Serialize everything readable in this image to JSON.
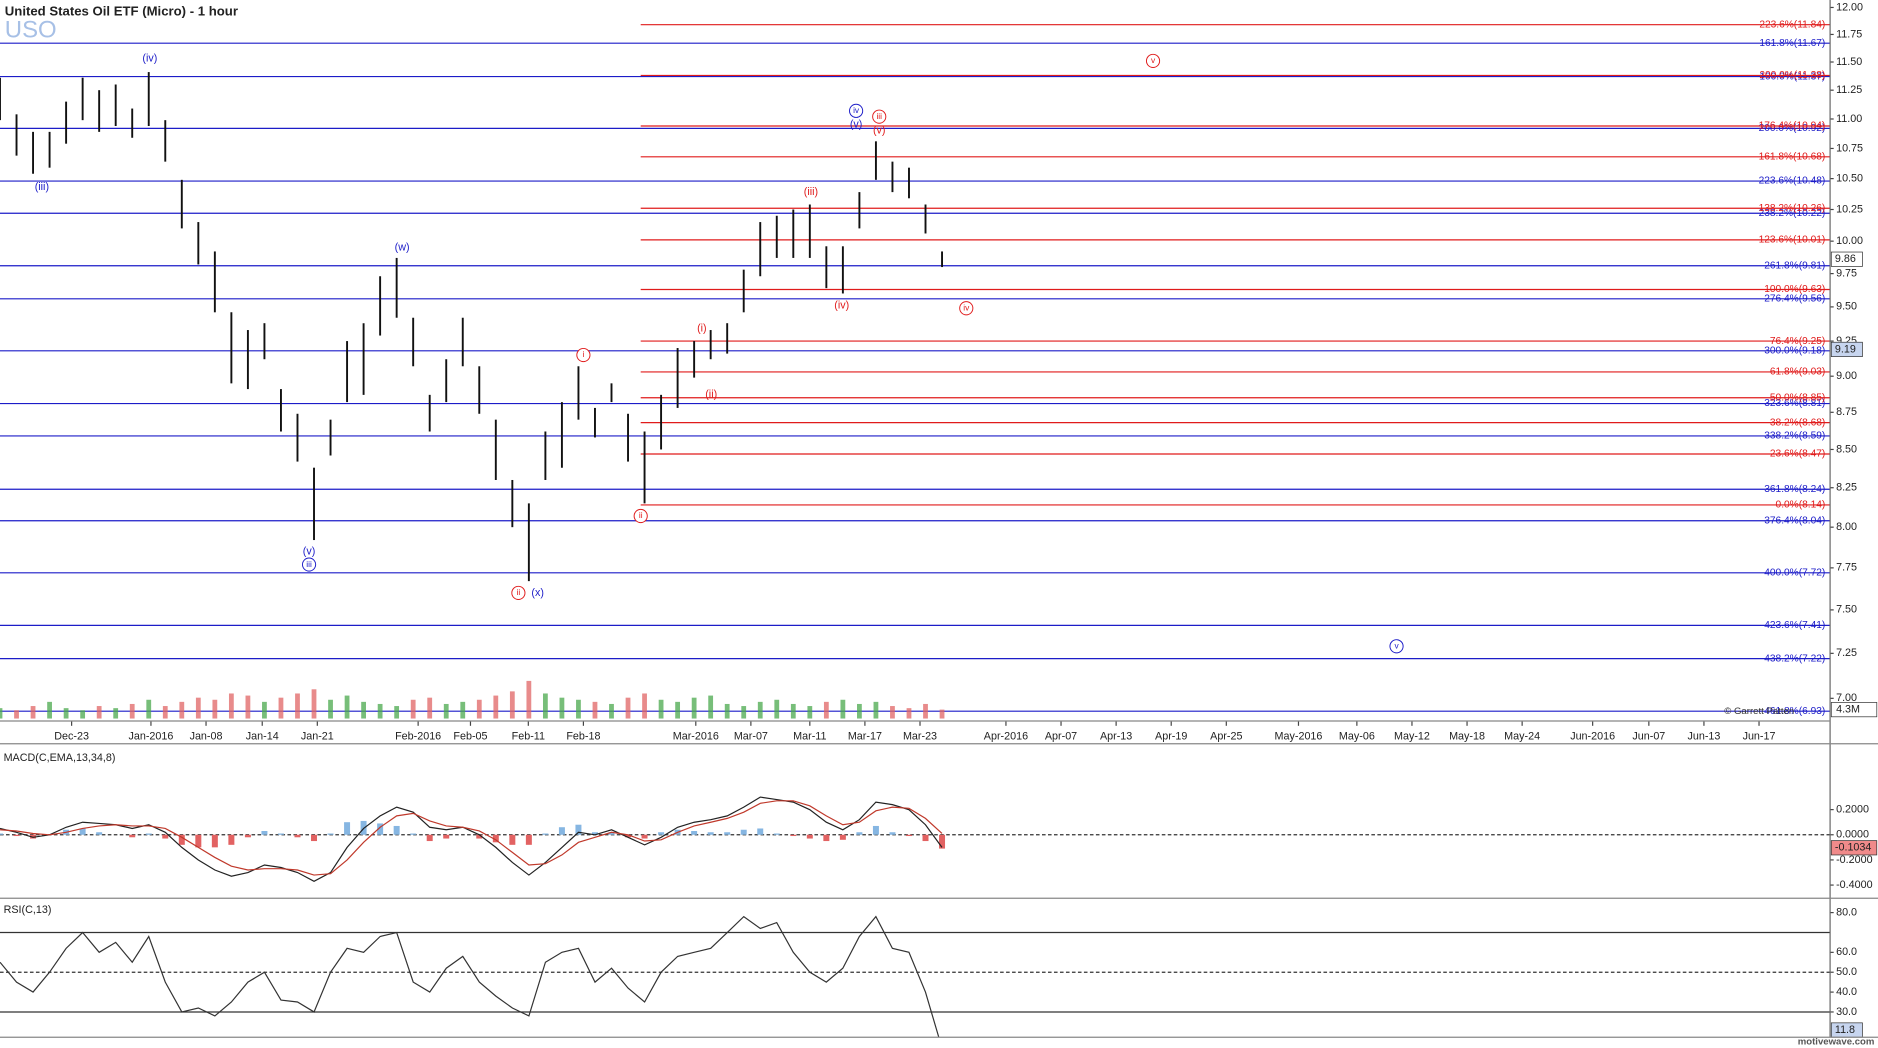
{
  "footer": "motivewave.com",
  "chart_data": [
    {
      "type": "ohlc",
      "title": "United States Oil ETF (Micro) - 1 hour",
      "symbol": "USO",
      "copyright": "© Garrett Patten",
      "color": "#111111",
      "x": [
        0,
        3,
        6,
        9,
        12,
        15,
        18,
        21,
        24,
        27,
        30,
        33,
        36,
        39,
        42,
        45,
        48,
        51,
        54,
        57,
        60,
        63,
        66,
        69,
        72,
        75,
        78,
        81,
        84,
        87,
        90,
        93,
        96,
        99,
        102,
        105,
        108,
        111,
        114,
        117,
        120,
        123,
        126,
        129,
        132,
        135,
        138,
        141,
        144,
        147,
        150,
        153,
        156,
        159,
        162,
        165,
        168,
        171
      ],
      "high": [
        11.36,
        11.04,
        10.89,
        10.89,
        11.15,
        11.36,
        11.25,
        11.3,
        11.09,
        11.41,
        10.99,
        10.49,
        10.15,
        9.92,
        9.46,
        9.33,
        9.38,
        8.91,
        8.74,
        8.38,
        8.7,
        9.25,
        9.38,
        9.73,
        9.87,
        9.42,
        8.87,
        9.12,
        9.42,
        9.07,
        8.7,
        8.3,
        8.15,
        8.62,
        8.82,
        9.07,
        8.78,
        8.95,
        8.74,
        8.62,
        8.87,
        9.2,
        9.25,
        9.33,
        9.38,
        9.78,
        10.15,
        10.2,
        10.25,
        10.29,
        9.96,
        9.96,
        10.39,
        10.81,
        10.64,
        10.59,
        10.29,
        9.92
      ],
      "low": [
        10.99,
        10.69,
        10.54,
        10.59,
        10.79,
        10.99,
        10.89,
        10.94,
        10.84,
        10.94,
        10.64,
        10.1,
        9.82,
        9.46,
        8.95,
        8.91,
        9.12,
        8.62,
        8.42,
        7.92,
        8.46,
        8.82,
        8.87,
        9.29,
        9.42,
        9.07,
        8.62,
        8.82,
        9.07,
        8.74,
        8.3,
        8.0,
        7.67,
        8.3,
        8.38,
        8.7,
        8.58,
        8.82,
        8.42,
        8.15,
        8.5,
        8.78,
        8.99,
        9.12,
        9.16,
        9.46,
        9.73,
        9.87,
        9.87,
        9.87,
        9.64,
        9.6,
        10.1,
        10.49,
        10.39,
        10.34,
        10.06,
        9.8
      ],
      "xlim": [
        0,
        332.2
      ],
      "xticks": [
        {
          "value": 13,
          "label": "Dec-23"
        },
        {
          "value": 27.4,
          "label": "Jan-2016"
        },
        {
          "value": 37.4,
          "label": "Jan-08"
        },
        {
          "value": 47.6,
          "label": "Jan-14"
        },
        {
          "value": 57.6,
          "label": "Jan-21"
        },
        {
          "value": 75.9,
          "label": "Feb-2016"
        },
        {
          "value": 85.4,
          "label": "Feb-05"
        },
        {
          "value": 95.9,
          "label": "Feb-11"
        },
        {
          "value": 105.9,
          "label": "Feb-18"
        },
        {
          "value": 126.3,
          "label": "Mar-2016"
        },
        {
          "value": 136.3,
          "label": "Mar-07"
        },
        {
          "value": 147,
          "label": "Mar-11"
        },
        {
          "value": 157,
          "label": "Mar-17"
        },
        {
          "value": 167,
          "label": "Mar-23"
        },
        {
          "value": 182.6,
          "label": "Apr-2016"
        },
        {
          "value": 192.6,
          "label": "Apr-07"
        },
        {
          "value": 202.6,
          "label": "Apr-13"
        },
        {
          "value": 212.6,
          "label": "Apr-19"
        },
        {
          "value": 222.6,
          "label": "Apr-25"
        },
        {
          "value": 235.7,
          "label": "May-2016"
        },
        {
          "value": 246.3,
          "label": "May-06"
        },
        {
          "value": 256.3,
          "label": "May-12"
        },
        {
          "value": 266.3,
          "label": "May-18"
        },
        {
          "value": 276.3,
          "label": "May-24"
        },
        {
          "value": 289.1,
          "label": "Jun-2016"
        },
        {
          "value": 299.3,
          "label": "Jun-07"
        },
        {
          "value": 309.3,
          "label": "Jun-13"
        },
        {
          "value": 319.3,
          "label": "Jun-17"
        }
      ],
      "ylim": [
        6.89,
        12.07
      ],
      "log_scale": true,
      "yticks": [
        {
          "value": 7,
          "label": "7.00"
        },
        {
          "value": 7.25,
          "label": "7.25"
        },
        {
          "value": 7.5,
          "label": "7.50"
        },
        {
          "value": 7.75,
          "label": "7.75"
        },
        {
          "value": 8,
          "label": "8.00"
        },
        {
          "value": 8.25,
          "label": "8.25"
        },
        {
          "value": 8.5,
          "label": "8.50"
        },
        {
          "value": 8.75,
          "label": "8.75"
        },
        {
          "value": 9,
          "label": "9.00"
        },
        {
          "value": 9.25,
          "label": "9.25"
        },
        {
          "value": 9.5,
          "label": "9.50"
        },
        {
          "value": 9.75,
          "label": "9.75"
        },
        {
          "value": 10,
          "label": "10.00"
        },
        {
          "value": 10.25,
          "label": "10.25"
        },
        {
          "value": 10.5,
          "label": "10.50"
        },
        {
          "value": 10.75,
          "label": "10.75"
        },
        {
          "value": 11,
          "label": "11.00"
        },
        {
          "value": 11.25,
          "label": "11.25"
        },
        {
          "value": 11.5,
          "label": "11.50"
        },
        {
          "value": 11.75,
          "label": "11.75"
        },
        {
          "value": 12,
          "label": "12.00"
        }
      ],
      "fib_sets": [
        {
          "color": "#1c1cc8",
          "start_x": 0,
          "levels": [
            {
              "label": "161.8%(11.67)",
              "value": 11.67
            },
            {
              "label": "100.0%(11.37)",
              "value": 11.37
            },
            {
              "label": "200.0%(10.92)",
              "value": 10.92
            },
            {
              "label": "223.6%(10.48)",
              "value": 10.48
            },
            {
              "label": "238.2%(10.22)",
              "value": 10.22
            },
            {
              "label": "261.8%(9.81)",
              "value": 9.81
            },
            {
              "label": "276.4%(9.56)",
              "value": 9.56
            },
            {
              "label": "300.0%(9.18)",
              "value": 9.18
            },
            {
              "label": "323.6%(8.81)",
              "value": 8.81
            },
            {
              "label": "338.2%(8.59)",
              "value": 8.59
            },
            {
              "label": "361.8%(8.24)",
              "value": 8.24
            },
            {
              "label": "376.4%(8.04)",
              "value": 8.04
            },
            {
              "label": "400.0%(7.72)",
              "value": 7.72
            },
            {
              "label": "423.6%(7.41)",
              "value": 7.41
            },
            {
              "label": "438.2%(7.22)",
              "value": 7.22
            },
            {
              "label": "461.8%(6.93)",
              "value": 6.93
            }
          ]
        },
        {
          "color": "#e01b1b",
          "start_x": 116.3,
          "levels": [
            {
              "label": "223.6%(11.84)",
              "value": 11.84
            },
            {
              "label": "200.0%(11.38)",
              "value": 11.38
            },
            {
              "label": "176.4%(10.94)",
              "value": 10.94
            },
            {
              "label": "161.8%(10.68)",
              "value": 10.68
            },
            {
              "label": "138.2%(10.26)",
              "value": 10.26
            },
            {
              "label": "123.6%(10.01)",
              "value": 10.01
            },
            {
              "label": "100.0%(9.63)",
              "value": 9.63
            },
            {
              "label": "76.4%(9.25)",
              "value": 9.25
            },
            {
              "label": "61.8%(9.03)",
              "value": 9.03
            },
            {
              "label": "50.0%(8.85)",
              "value": 8.85
            },
            {
              "label": "38.2%(8.68)",
              "value": 8.68
            },
            {
              "label": "23.6%(8.47)",
              "value": 8.47
            },
            {
              "label": "0.0%(8.14)",
              "value": 8.14
            }
          ]
        }
      ],
      "annotations": [
        {
          "text": "(iv)",
          "x": 27.2,
          "y": 11.53,
          "color": "#1c1cc8",
          "circled": false
        },
        {
          "text": "(iii)",
          "x": 7.6,
          "y": 10.43,
          "color": "#1c1cc8",
          "circled": false
        },
        {
          "text": "(w)",
          "x": 73,
          "y": 9.95,
          "color": "#1c1cc8",
          "circled": false
        },
        {
          "text": "(v)",
          "x": 56.1,
          "y": 7.85,
          "color": "#1c1cc8",
          "circled": false
        },
        {
          "text": "iii",
          "x": 56.1,
          "y": 7.77,
          "color": "#1c1cc8",
          "circled": true
        },
        {
          "text": "i",
          "x": 105.9,
          "y": 9.15,
          "color": "#e01b1b",
          "circled": true
        },
        {
          "text": "ii",
          "x": 94.1,
          "y": 7.6,
          "color": "#e01b1b",
          "circled": true
        },
        {
          "text": "(x)",
          "x": 97.6,
          "y": 7.6,
          "color": "#1c1cc8",
          "circled": false
        },
        {
          "text": "ii",
          "x": 116.3,
          "y": 8.07,
          "color": "#e01b1b",
          "circled": true
        },
        {
          "text": "(i)",
          "x": 127.4,
          "y": 9.34,
          "color": "#e01b1b",
          "circled": false
        },
        {
          "text": "(ii)",
          "x": 129.1,
          "y": 8.87,
          "color": "#e01b1b",
          "circled": false
        },
        {
          "text": "(iii)",
          "x": 147.2,
          "y": 10.39,
          "color": "#e01b1b",
          "circled": false
        },
        {
          "text": "(iv)",
          "x": 152.8,
          "y": 9.51,
          "color": "#e01b1b",
          "circled": false
        },
        {
          "text": "iv",
          "x": 155.4,
          "y": 11.07,
          "color": "#1c1cc8",
          "circled": true
        },
        {
          "text": "(v)",
          "x": 155.4,
          "y": 10.95,
          "color": "#1c1cc8",
          "circled": false
        },
        {
          "text": "iii",
          "x": 159.6,
          "y": 11.02,
          "color": "#e01b1b",
          "circled": true
        },
        {
          "text": "(v)",
          "x": 159.6,
          "y": 10.9,
          "color": "#e01b1b",
          "circled": false
        },
        {
          "text": "iv",
          "x": 175.4,
          "y": 9.49,
          "color": "#e01b1b",
          "circled": true
        },
        {
          "text": "v",
          "x": 209.3,
          "y": 11.51,
          "color": "#e01b1b",
          "circled": true
        },
        {
          "text": "v",
          "x": 253.5,
          "y": 7.29,
          "color": "#1c1cc8",
          "circled": true
        }
      ],
      "price_markers": [
        {
          "value": 9.86,
          "fill": "#ffffff"
        },
        {
          "value": 9.19,
          "fill": "#c7d5ef"
        }
      ],
      "volume": {
        "values": [
          5,
          4,
          6,
          8,
          5,
          4,
          6,
          5,
          7,
          9,
          6,
          8,
          10,
          9,
          12,
          11,
          8,
          10,
          12,
          14,
          9,
          11,
          8,
          7,
          6,
          9,
          10,
          7,
          8,
          9,
          11,
          13,
          18,
          12,
          10,
          9,
          8,
          7,
          10,
          12,
          9,
          8,
          10,
          11,
          7,
          6,
          8,
          9,
          7,
          6,
          8,
          9,
          7,
          8,
          6,
          5,
          7,
          4.3
        ],
        "ylim": [
          0,
          40
        ],
        "up_color": "#49a84c",
        "down_color": "#e06464",
        "last_label": "4.3M"
      }
    },
    {
      "type": "macd",
      "label": "MACD(C,EMA,13,34,8)",
      "x": [
        0,
        3,
        6,
        9,
        12,
        15,
        18,
        21,
        24,
        27,
        30,
        33,
        36,
        39,
        42,
        45,
        48,
        51,
        54,
        57,
        60,
        63,
        66,
        69,
        72,
        75,
        78,
        81,
        84,
        87,
        90,
        93,
        96,
        99,
        102,
        105,
        108,
        111,
        114,
        117,
        120,
        123,
        126,
        129,
        132,
        135,
        138,
        141,
        144,
        147,
        150,
        153,
        156,
        159,
        162,
        165,
        168,
        171
      ],
      "macd": [
        0.05,
        0.02,
        -0.02,
        0.0,
        0.06,
        0.1,
        0.09,
        0.08,
        0.05,
        0.08,
        0.02,
        -0.1,
        -0.2,
        -0.28,
        -0.33,
        -0.3,
        -0.24,
        -0.26,
        -0.3,
        -0.37,
        -0.3,
        -0.1,
        0.05,
        0.15,
        0.22,
        0.18,
        0.06,
        0.04,
        0.06,
        0.0,
        -0.1,
        -0.22,
        -0.32,
        -0.22,
        -0.1,
        0.02,
        0.0,
        0.04,
        -0.02,
        -0.08,
        -0.02,
        0.06,
        0.1,
        0.12,
        0.15,
        0.22,
        0.3,
        0.28,
        0.26,
        0.2,
        0.1,
        0.04,
        0.12,
        0.26,
        0.24,
        0.2,
        0.08,
        -0.1
      ],
      "signal": [
        0.04,
        0.03,
        0.01,
        0.0,
        0.02,
        0.05,
        0.07,
        0.08,
        0.07,
        0.07,
        0.05,
        -0.02,
        -0.1,
        -0.18,
        -0.25,
        -0.28,
        -0.27,
        -0.27,
        -0.28,
        -0.32,
        -0.31,
        -0.2,
        -0.06,
        0.06,
        0.15,
        0.17,
        0.11,
        0.07,
        0.06,
        0.03,
        -0.04,
        -0.14,
        -0.24,
        -0.23,
        -0.16,
        -0.06,
        -0.02,
        0.02,
        0.0,
        -0.05,
        -0.04,
        0.02,
        0.07,
        0.1,
        0.13,
        0.18,
        0.25,
        0.27,
        0.27,
        0.23,
        0.15,
        0.08,
        0.1,
        0.19,
        0.22,
        0.21,
        0.13,
        0.01
      ],
      "histogram": [
        0.01,
        -0.01,
        -0.03,
        0.0,
        0.04,
        0.05,
        0.02,
        0.0,
        -0.02,
        0.01,
        -0.03,
        -0.08,
        -0.1,
        -0.1,
        -0.08,
        -0.02,
        0.03,
        0.01,
        -0.02,
        -0.05,
        0.01,
        0.1,
        0.11,
        0.09,
        0.07,
        0.01,
        -0.05,
        -0.03,
        0.0,
        -0.03,
        -0.06,
        -0.08,
        -0.08,
        0.01,
        0.06,
        0.08,
        0.02,
        0.02,
        -0.02,
        -0.03,
        0.02,
        0.04,
        0.03,
        0.02,
        0.02,
        0.04,
        0.05,
        0.01,
        -0.01,
        -0.03,
        -0.05,
        -0.04,
        0.02,
        0.07,
        0.02,
        -0.01,
        -0.05,
        -0.11
      ],
      "xlim": [
        0,
        332.2
      ],
      "ylim": [
        -0.486,
        0.714
      ],
      "yticks": [
        {
          "value": 0.2,
          "label": "0.2000"
        },
        {
          "value": 0,
          "label": "0.0000"
        },
        {
          "value": -0.2,
          "label": "-0.2000"
        },
        {
          "value": -0.4,
          "label": "-0.4000"
        }
      ],
      "dashed_lines": [
        0
      ],
      "last_value": -0.1034,
      "colors": {
        "macd": "#222222",
        "signal": "#c0392b",
        "hist_up": "#86b6e2",
        "hist_down": "#e26262",
        "last_fill": "#f08a8a"
      }
    },
    {
      "type": "rsi",
      "label": "RSI(C,13)",
      "x": [
        0,
        3,
        6,
        9,
        12,
        15,
        18,
        21,
        24,
        27,
        30,
        33,
        36,
        39,
        42,
        45,
        48,
        51,
        54,
        57,
        60,
        63,
        66,
        69,
        72,
        75,
        78,
        81,
        84,
        87,
        90,
        93,
        96,
        99,
        102,
        105,
        108,
        111,
        114,
        117,
        120,
        123,
        126,
        129,
        132,
        135,
        138,
        141,
        144,
        147,
        150,
        153,
        156,
        159,
        162,
        165,
        168,
        171
      ],
      "values": [
        55,
        45,
        40,
        50,
        62,
        70,
        60,
        65,
        55,
        68,
        45,
        30,
        32,
        28,
        35,
        45,
        50,
        36,
        35,
        30,
        50,
        62,
        60,
        68,
        70,
        45,
        40,
        52,
        58,
        45,
        38,
        32,
        28,
        55,
        60,
        62,
        45,
        52,
        42,
        35,
        50,
        58,
        60,
        62,
        70,
        78,
        72,
        75,
        60,
        50,
        45,
        52,
        68,
        78,
        62,
        60,
        40,
        11.8
      ],
      "color": "#333333",
      "xlim": [
        0,
        332.2
      ],
      "ylim": [
        17.3,
        86.0
      ],
      "yticks": [
        {
          "value": 80,
          "label": "80.0"
        },
        {
          "value": 60,
          "label": "60.0"
        },
        {
          "value": 50,
          "label": "50.0"
        },
        {
          "value": 40,
          "label": "40.0"
        },
        {
          "value": 30,
          "label": "30.0"
        }
      ],
      "level_lines": [
        {
          "value": 70,
          "style": "solid"
        },
        {
          "value": 50,
          "style": "dashed"
        },
        {
          "value": 30,
          "style": "solid"
        }
      ],
      "last_value": 11.8
    }
  ]
}
